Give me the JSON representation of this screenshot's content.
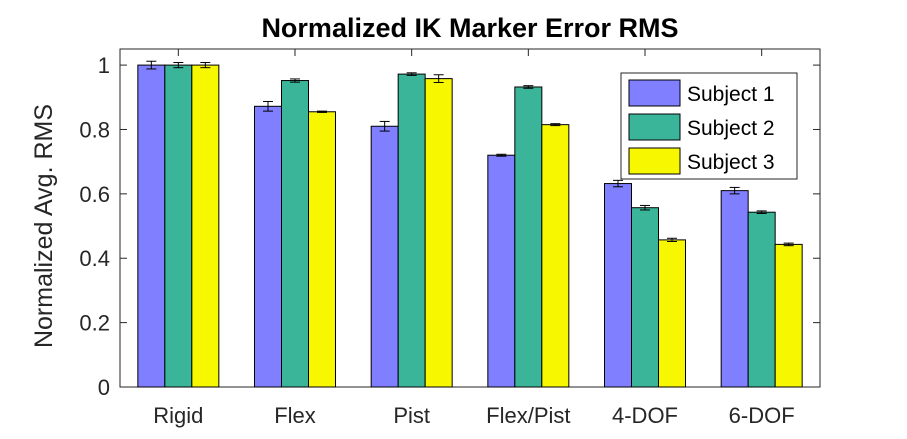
{
  "chart_data": {
    "type": "bar",
    "title": "Normalized IK Marker Error RMS",
    "xlabel": "",
    "ylabel": "Normalized Avg. RMS",
    "ylim": [
      0,
      1.05
    ],
    "yticks": [
      0,
      0.2,
      0.4,
      0.6,
      0.8,
      1
    ],
    "ytick_labels": [
      "0",
      "0.2",
      "0.4",
      "0.6",
      "0.8",
      "1"
    ],
    "categories": [
      "Rigid",
      "Flex",
      "Pist",
      "Flex/Pist",
      "4-DOF",
      "6-DOF"
    ],
    "grid": false,
    "legend_position": "top-right",
    "series": [
      {
        "name": "Subject 1",
        "color": "#7f7fff",
        "values": [
          1.0,
          0.872,
          0.81,
          0.72,
          0.632,
          0.61
        ],
        "errors": [
          0.012,
          0.015,
          0.015,
          0.003,
          0.01,
          0.01
        ]
      },
      {
        "name": "Subject 2",
        "color": "#3bb59a",
        "values": [
          1.0,
          0.952,
          0.972,
          0.932,
          0.557,
          0.543
        ],
        "errors": [
          0.008,
          0.005,
          0.004,
          0.004,
          0.007,
          0.004
        ]
      },
      {
        "name": "Subject 3",
        "color": "#f7f700",
        "values": [
          1.0,
          0.855,
          0.958,
          0.815,
          0.457,
          0.443
        ],
        "errors": [
          0.008,
          0.002,
          0.012,
          0.003,
          0.005,
          0.004
        ]
      }
    ]
  }
}
